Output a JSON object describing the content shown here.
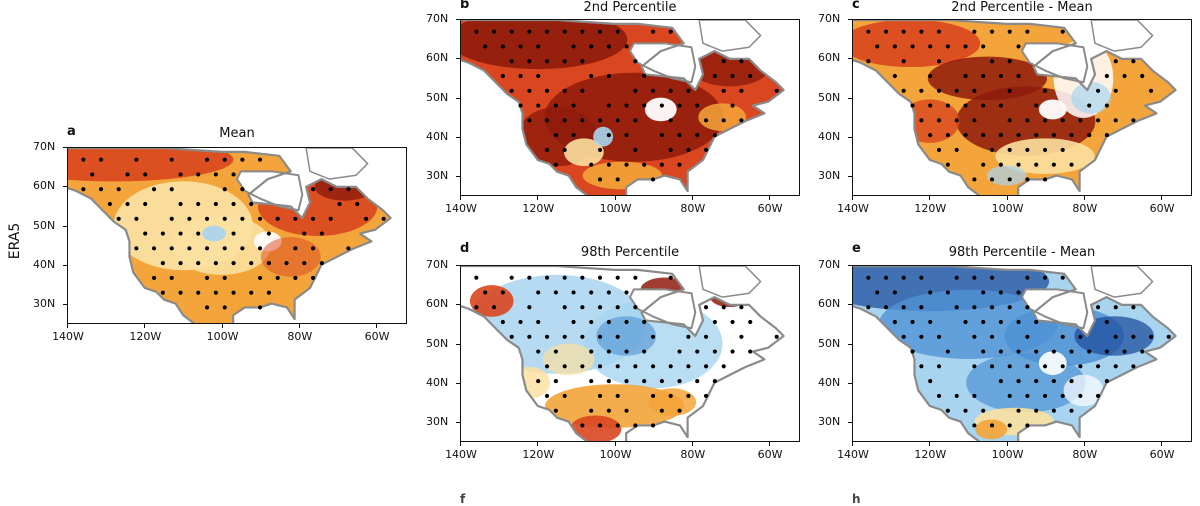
{
  "row_label": "ERA5",
  "colors": {
    "warm_dark": "#8e1b0c",
    "warm_mid": "#d9461f",
    "warm_light": "#f3a43a",
    "pale": "#fbe0a0",
    "cool_light": "#a8d4f0",
    "cool_mid": "#4f92d4",
    "cool_dark": "#1f4f9f",
    "coast": "#8a8a8a"
  },
  "axis": {
    "lon_ticks": [
      "140W",
      "120W",
      "100W",
      "80W",
      "60W"
    ],
    "lat_ticks": [
      "70N",
      "60N",
      "50N",
      "40N",
      "30N"
    ]
  },
  "panels": [
    {
      "id": "a",
      "title": "Mean",
      "pattern": "warm"
    },
    {
      "id": "b",
      "title": "2nd Percentile",
      "pattern": "hot"
    },
    {
      "id": "c",
      "title": "2nd Percentile - Mean",
      "pattern": "hotmix"
    },
    {
      "id": "d",
      "title": "98th Percentile",
      "pattern": "mixed"
    },
    {
      "id": "e",
      "title": "98th Percentile - Mean",
      "pattern": "cool"
    }
  ],
  "cut_off_letters": [
    "f",
    "h"
  ]
}
